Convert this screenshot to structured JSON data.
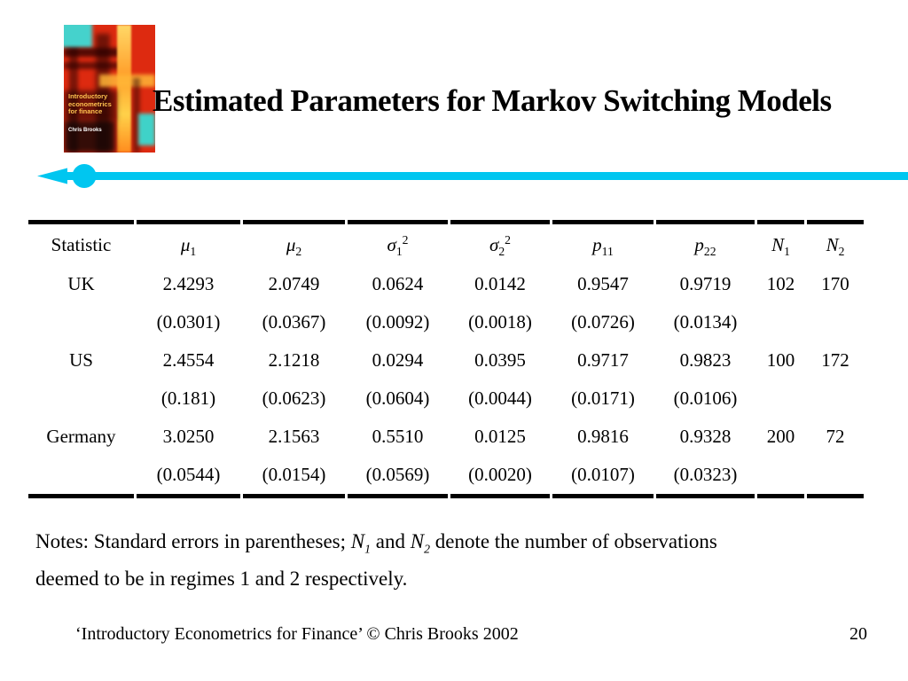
{
  "title": "Estimated Parameters for Markov Switching Models",
  "accent_colors": {
    "divider_cyan": "#00c6f0",
    "rule_black": "#000000"
  },
  "book_cover": {
    "title": "Introductory econometrics for finance",
    "author": "Chris Brooks"
  },
  "table": {
    "columns": [
      {
        "name": "statistic",
        "segments": [
          {
            "t": "Statistic"
          }
        ]
      },
      {
        "name": "mu1",
        "segments": [
          {
            "t": "μ",
            "i": true
          },
          {
            "t": "1",
            "sub": true
          }
        ]
      },
      {
        "name": "mu2",
        "segments": [
          {
            "t": "μ",
            "i": true
          },
          {
            "t": "2",
            "sub": true
          }
        ]
      },
      {
        "name": "sigma1-squared",
        "segments": [
          {
            "t": "σ",
            "i": true
          },
          {
            "t": "1",
            "sub": true
          },
          {
            "t": "2",
            "sup": true
          }
        ]
      },
      {
        "name": "sigma2-squared",
        "segments": [
          {
            "t": "σ",
            "i": true
          },
          {
            "t": "2",
            "sub": true
          },
          {
            "t": "2",
            "sup": true
          }
        ]
      },
      {
        "name": "p11",
        "segments": [
          {
            "t": "p",
            "i": true
          },
          {
            "t": "11",
            "sub": true
          }
        ]
      },
      {
        "name": "p22",
        "segments": [
          {
            "t": "p",
            "i": true
          },
          {
            "t": "22",
            "sub": true
          }
        ]
      },
      {
        "name": "N1",
        "segments": [
          {
            "t": "N",
            "i": true
          },
          {
            "t": "1",
            "sub": true
          }
        ]
      },
      {
        "name": "N2",
        "segments": [
          {
            "t": "N",
            "i": true
          },
          {
            "t": "2",
            "sub": true
          }
        ]
      }
    ],
    "rows": [
      [
        "UK",
        "2.4293",
        "2.0749",
        "0.0624",
        "0.0142",
        "0.9547",
        "0.9719",
        "102",
        "170"
      ],
      [
        "",
        "(0.0301)",
        "(0.0367)",
        "(0.0092)",
        "(0.0018)",
        "(0.0726)",
        "(0.0134)",
        "",
        ""
      ],
      [
        "US",
        "2.4554",
        "2.1218",
        "0.0294",
        "0.0395",
        "0.9717",
        "0.9823",
        "100",
        "172"
      ],
      [
        "",
        "(0.181)",
        "(0.0623)",
        "(0.0604)",
        "(0.0044)",
        "(0.0171)",
        "(0.0106)",
        "",
        ""
      ],
      [
        "Germany",
        "3.0250",
        "2.1563",
        "0.5510",
        "0.0125",
        "0.9816",
        "0.9328",
        "200",
        "72"
      ],
      [
        "",
        "(0.0544)",
        "(0.0154)",
        "(0.0569)",
        "(0.0020)",
        "(0.0107)",
        "(0.0323)",
        "",
        ""
      ]
    ]
  },
  "notes": {
    "segments": [
      {
        "t": "Notes: Standard errors in parentheses; "
      },
      {
        "t": "N",
        "i": true
      },
      {
        "t": "1",
        "sub": true,
        "i": true
      },
      {
        "t": " and "
      },
      {
        "t": "N",
        "i": true
      },
      {
        "t": "2",
        "sub": true,
        "i": true
      },
      {
        "t": " denote the number of observations"
      },
      {
        "br": true
      },
      {
        "t": "deemed to be in regimes 1 and 2 respectively."
      }
    ]
  },
  "footer": {
    "credit": "‘Introductory Econometrics for Finance’ © Chris Brooks 2002",
    "page_number": "20"
  }
}
